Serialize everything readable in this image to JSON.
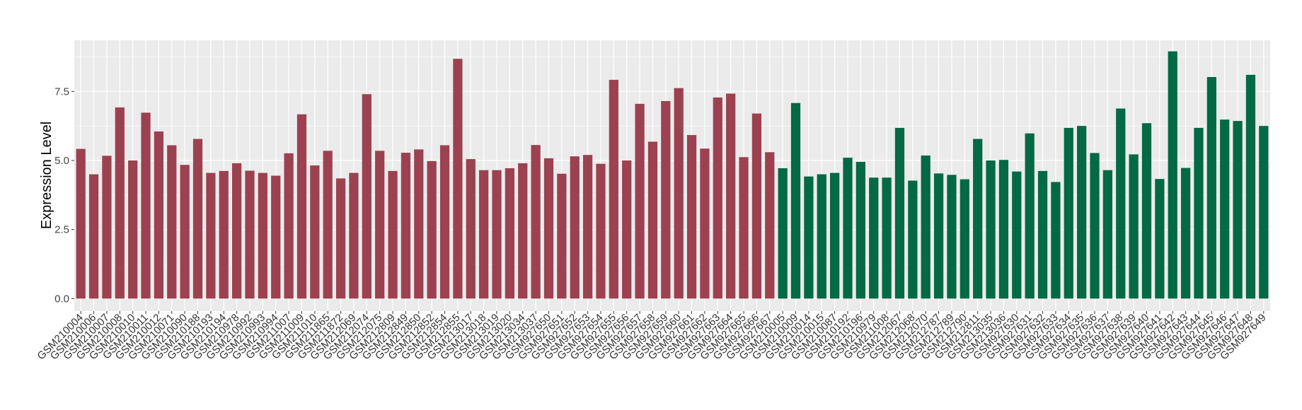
{
  "chart_data": {
    "type": "bar",
    "title": "",
    "xlabel": "",
    "ylabel": "Expression Level",
    "ylim": [
      -0.45,
      9.35
    ],
    "yticks": [
      0.0,
      2.5,
      5.0,
      7.5
    ],
    "ytick_labels": [
      "0.0",
      "2.5",
      "5.0",
      "7.5"
    ],
    "grid": true,
    "legend": "none",
    "colors": {
      "group1": "#9c4150",
      "group2": "#046945",
      "panel": "#ebebeb",
      "grid": "#ffffff"
    },
    "categories": [
      "GSM210004",
      "GSM210006",
      "GSM210007",
      "GSM210008",
      "GSM210010",
      "GSM210011",
      "GSM210012",
      "GSM210071",
      "GSM210090",
      "GSM210188",
      "GSM210193",
      "GSM210194",
      "GSM210978",
      "GSM210992",
      "GSM210993",
      "GSM210994",
      "GSM211007",
      "GSM211009",
      "GSM211010",
      "GSM211865",
      "GSM211872",
      "GSM212069",
      "GSM212074",
      "GSM212075",
      "GSM212809",
      "GSM212849",
      "GSM212850",
      "GSM212852",
      "GSM212854",
      "GSM212855",
      "GSM213017",
      "GSM213018",
      "GSM213019",
      "GSM213020",
      "GSM213034",
      "GSM213037",
      "GSM927650",
      "GSM927651",
      "GSM927652",
      "GSM927653",
      "GSM927654",
      "GSM927655",
      "GSM927656",
      "GSM927657",
      "GSM927658",
      "GSM927659",
      "GSM927660",
      "GSM927661",
      "GSM927662",
      "GSM927663",
      "GSM927664",
      "GSM927665",
      "GSM927666",
      "GSM927667",
      "GSM210005",
      "GSM210009",
      "GSM210014",
      "GSM210015",
      "GSM210087",
      "GSM210192",
      "GSM210196",
      "GSM210979",
      "GSM211008",
      "GSM212067",
      "GSM212068",
      "GSM212070",
      "GSM212787",
      "GSM212789",
      "GSM212790",
      "GSM212811",
      "GSM213035",
      "GSM213036",
      "GSM927630",
      "GSM927631",
      "GSM927632",
      "GSM927633",
      "GSM927634",
      "GSM927635",
      "GSM927636",
      "GSM927637",
      "GSM927638",
      "GSM927639",
      "GSM927640",
      "GSM927641",
      "GSM927642",
      "GSM927643",
      "GSM927644",
      "GSM927645",
      "GSM927646",
      "GSM927647",
      "GSM927648",
      "GSM927649"
    ],
    "values": [
      5.42,
      4.5,
      5.17,
      6.92,
      5.0,
      6.73,
      6.05,
      5.55,
      4.84,
      5.78,
      4.55,
      4.62,
      4.9,
      4.63,
      4.55,
      4.45,
      5.26,
      6.67,
      4.82,
      5.35,
      4.35,
      4.55,
      7.4,
      5.35,
      4.62,
      5.28,
      5.4,
      4.98,
      5.55,
      8.68,
      5.05,
      4.65,
      4.65,
      4.72,
      4.9,
      5.56,
      5.08,
      4.52,
      5.15,
      5.2,
      4.88,
      7.92,
      5.0,
      7.05,
      5.68,
      7.15,
      7.62,
      5.92,
      5.43,
      7.28,
      7.42,
      5.12,
      6.7,
      5.3,
      4.72,
      7.08,
      4.42,
      4.5,
      4.55,
      5.1,
      4.95,
      4.38,
      4.38,
      6.18,
      4.27,
      5.18,
      4.53,
      4.48,
      4.32,
      5.78,
      5.0,
      5.02,
      4.6,
      5.98,
      4.62,
      4.22,
      6.18,
      6.25,
      5.27,
      4.65,
      6.88,
      5.22,
      6.35,
      4.33,
      8.95,
      4.73,
      6.18,
      8.02,
      6.48,
      6.43,
      8.1,
      6.25
    ],
    "group_of_category": [
      1,
      1,
      1,
      1,
      1,
      1,
      1,
      1,
      1,
      1,
      1,
      1,
      1,
      1,
      1,
      1,
      1,
      1,
      1,
      1,
      1,
      1,
      1,
      1,
      1,
      1,
      1,
      1,
      1,
      1,
      1,
      1,
      1,
      1,
      1,
      1,
      1,
      1,
      1,
      1,
      1,
      1,
      1,
      1,
      1,
      1,
      1,
      1,
      1,
      1,
      1,
      1,
      1,
      1,
      2,
      2,
      2,
      2,
      2,
      2,
      2,
      2,
      2,
      2,
      2,
      2,
      2,
      2,
      2,
      2,
      2,
      2,
      2,
      2,
      2,
      2,
      2,
      2,
      2,
      2,
      2,
      2,
      2,
      2,
      2,
      2,
      2,
      2,
      2,
      2,
      2,
      2
    ]
  }
}
